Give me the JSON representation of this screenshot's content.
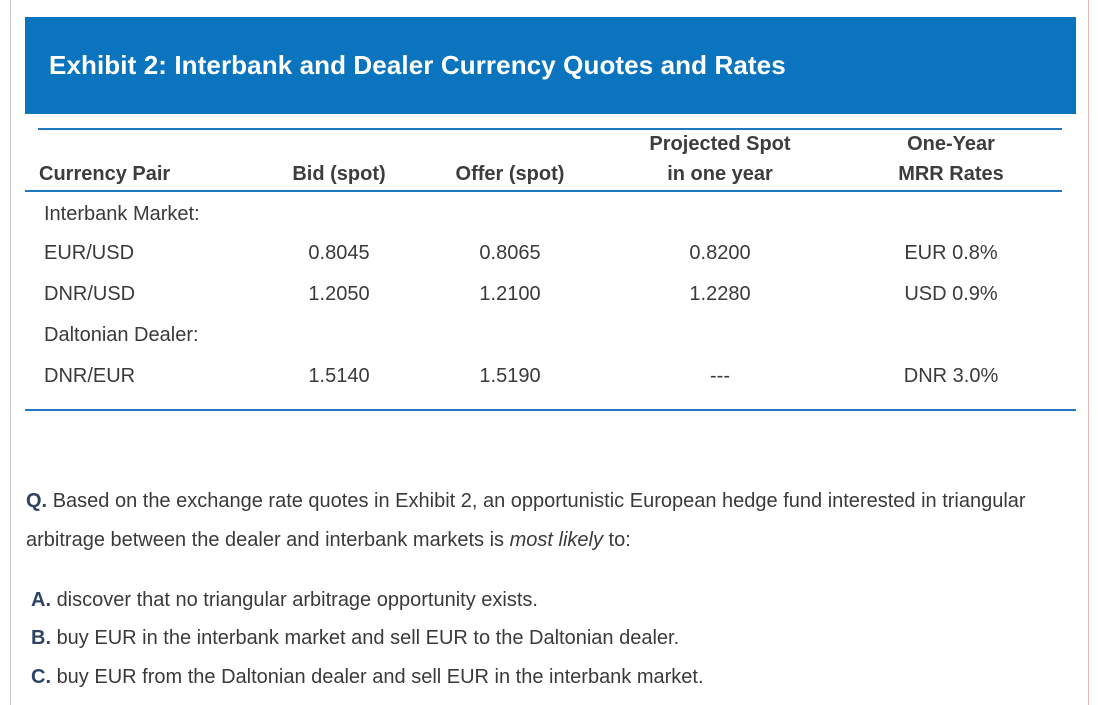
{
  "exhibit": {
    "title": "Exhibit 2: Interbank and Dealer Currency Quotes and Rates"
  },
  "table": {
    "headers": {
      "pair": "Currency Pair",
      "bid": "Bid (spot)",
      "offer": "Offer (spot)",
      "projected_line1": "Projected Spot",
      "projected_line2": "in one year",
      "mrr_line1": "One-Year",
      "mrr_line2": "MRR Rates"
    },
    "sections": [
      {
        "label": "Interbank Market:",
        "rows": [
          {
            "pair": "EUR/USD",
            "bid": "0.8045",
            "offer": "0.8065",
            "projected": "0.8200",
            "mrr": "EUR 0.8%"
          },
          {
            "pair": "DNR/USD",
            "bid": "1.2050",
            "offer": "1.2100",
            "projected": "1.2280",
            "mrr": "USD 0.9%"
          }
        ]
      },
      {
        "label": "Daltonian Dealer:",
        "rows": [
          {
            "pair": "DNR/EUR",
            "bid": "1.5140",
            "offer": "1.5190",
            "projected": "---",
            "mrr": "DNR 3.0%"
          }
        ]
      }
    ]
  },
  "question": {
    "prefix": "Q.",
    "text_before": "Based on the exchange rate quotes in Exhibit 2, an opportunistic European hedge fund interested in triangular arbitrage between the dealer and interbank markets is",
    "emphasis": "most likely",
    "text_after": "to:"
  },
  "options": [
    {
      "letter": "A.",
      "text": "discover that no triangular arbitrage opportunity exists."
    },
    {
      "letter": "B.",
      "text": "buy EUR in the interbank market and sell EUR to the Daltonian dealer."
    },
    {
      "letter": "C.",
      "text": "buy EUR from the Daltonian dealer and sell EUR in the interbank market."
    }
  ],
  "colors": {
    "header_bg": "#0b74be",
    "rule": "#1f78c1",
    "text": "#3a3a3a",
    "option_letter": "#2f4463"
  }
}
